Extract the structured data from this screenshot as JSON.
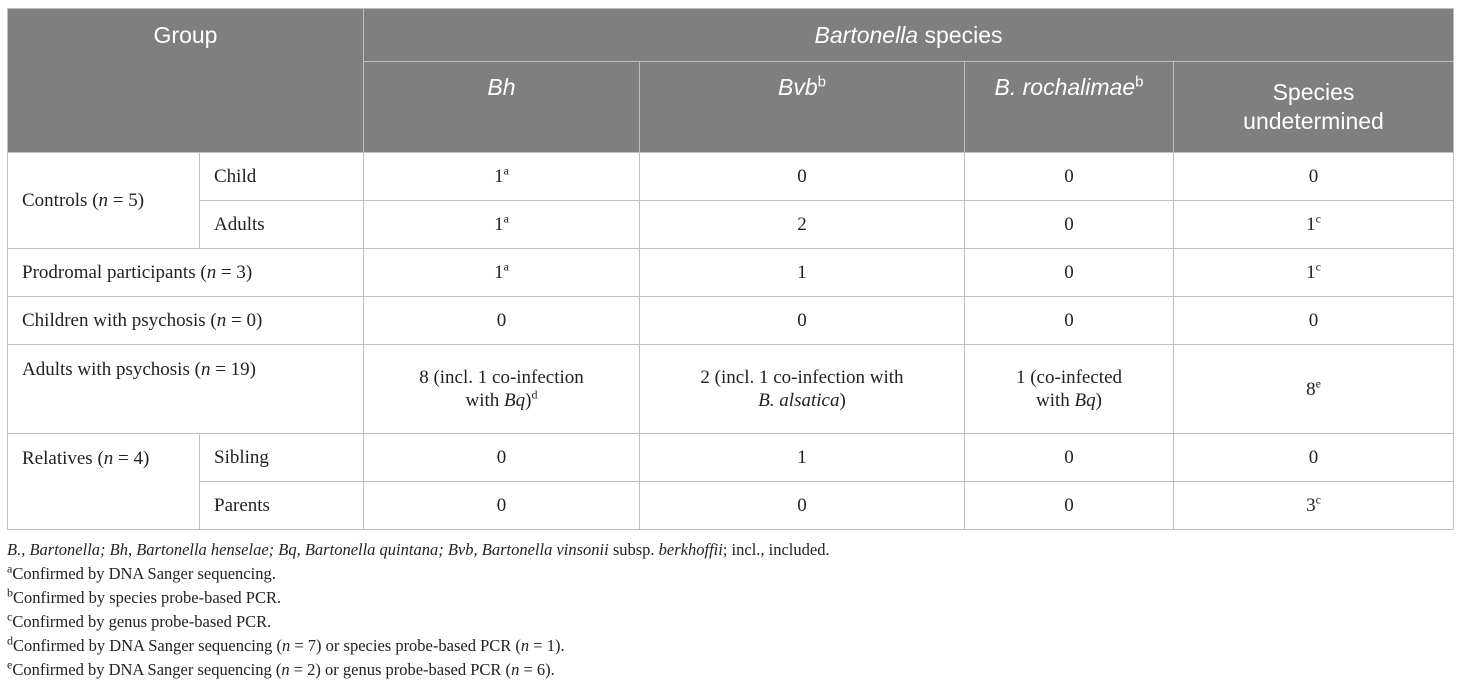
{
  "header": {
    "group": "Group",
    "species_title_italic": "Bartonella",
    "species_title_rest": " species",
    "col_bh": "Bh",
    "col_bvb": "Bvb",
    "col_bvb_sup": "b",
    "col_broch": "B. rochalimae",
    "col_broch_sup": "b",
    "col_undet": "Species undetermined"
  },
  "rows": {
    "controls": {
      "label_pre": "Controls (",
      "label_n": "n",
      "label_post": " = 5)",
      "child": {
        "label": "Child",
        "bh": "1",
        "bh_sup": "a",
        "bvb": "0",
        "broch": "0",
        "undet": "0"
      },
      "adults": {
        "label": "Adults",
        "bh": "1",
        "bh_sup": "a",
        "bvb": "2",
        "broch": "0",
        "undet": "1",
        "undet_sup": "c"
      }
    },
    "prodromal": {
      "label_pre": "Prodromal participants (",
      "label_n": "n",
      "label_post": " = 3)",
      "bh": "1",
      "bh_sup": "a",
      "bvb": "1",
      "broch": "0",
      "undet": "1",
      "undet_sup": "c"
    },
    "children_psychosis": {
      "label_pre": "Children with psychosis (",
      "label_n": "n",
      "label_post": " = 0)",
      "bh": "0",
      "bvb": "0",
      "broch": "0",
      "undet": "0"
    },
    "adults_psychosis": {
      "label_pre": "Adults with psychosis (",
      "label_n": "n",
      "label_post": " = 19)",
      "bh_line1": "8 (incl. 1 co-infection",
      "bh_line2_pre": "with ",
      "bh_line2_it": "Bq",
      "bh_line2_post": ")",
      "bh_sup": "d",
      "bvb_line1": "2 (incl. 1 co-infection with",
      "bvb_line2_it": "B. alsatica",
      "bvb_line2_post": ")",
      "broch_line1": "1 (co-infected",
      "broch_line2_pre": "with ",
      "broch_line2_it": "Bq",
      "broch_line2_post": ")",
      "undet": "8",
      "undet_sup": "e"
    },
    "relatives": {
      "label_pre": "Relatives (",
      "label_n": "n",
      "label_post": " = 4)",
      "sibling": {
        "label": "Sibling",
        "bh": "0",
        "bvb": "1",
        "broch": "0",
        "undet": "0"
      },
      "parents": {
        "label": "Parents",
        "bh": "0",
        "bvb": "0",
        "broch": "0",
        "undet": "3",
        "undet_sup": "c"
      }
    }
  },
  "footnotes": {
    "abbrev": {
      "p1": "B., Bartonella; Bh, Bartonella henselae; Bq, Bartonella quintana; Bvb, Bartonella vinsonii",
      "p2": " subsp. ",
      "p3": "berkhoffii",
      "p4": "; incl., included."
    },
    "a": {
      "mark": "a",
      "text": "Confirmed by DNA Sanger sequencing."
    },
    "b": {
      "mark": "b",
      "text": "Confirmed by species probe-based PCR."
    },
    "c": {
      "mark": "c",
      "text": "Confirmed by genus probe-based PCR."
    },
    "d": {
      "mark": "d",
      "t1": "Confirmed by DNA Sanger sequencing (",
      "n1": "n",
      "t2": " = 7) or species probe-based PCR (",
      "n2": "n",
      "t3": " = 1)."
    },
    "e": {
      "mark": "e",
      "t1": "Confirmed by DNA Sanger sequencing (",
      "n1": "n",
      "t2": " = 2) or genus probe-based PCR (",
      "n2": "n",
      "t3": " = 6)."
    }
  }
}
